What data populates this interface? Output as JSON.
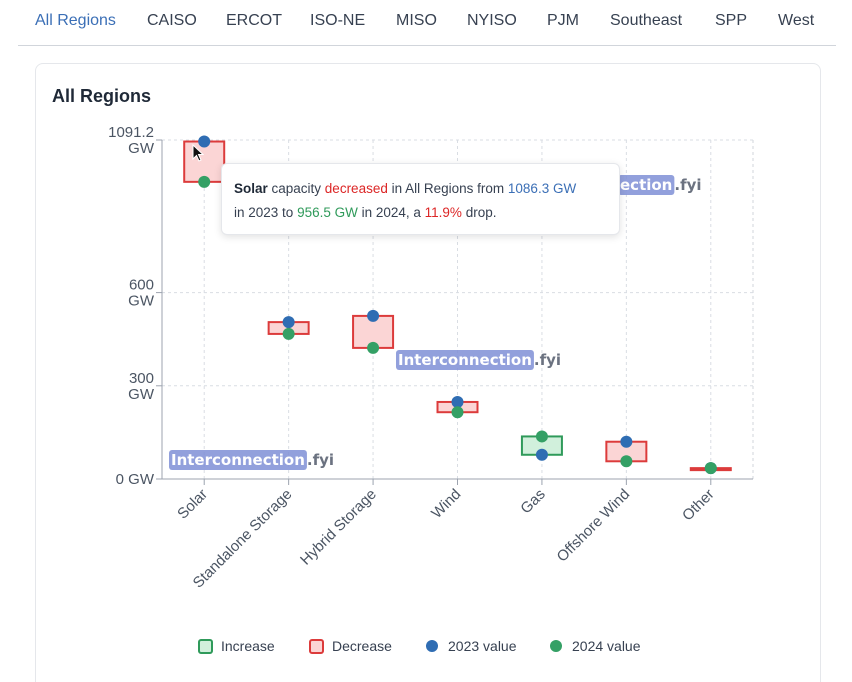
{
  "tabs": [
    {
      "label": "All Regions",
      "active": true
    },
    {
      "label": "CAISO",
      "active": false
    },
    {
      "label": "ERCOT",
      "active": false
    },
    {
      "label": "ISO-NE",
      "active": false
    },
    {
      "label": "MISO",
      "active": false
    },
    {
      "label": "NYISO",
      "active": false
    },
    {
      "label": "PJM",
      "active": false
    },
    {
      "label": "Southeast",
      "active": false
    },
    {
      "label": "SPP",
      "active": false
    },
    {
      "label": "West",
      "active": false
    }
  ],
  "card": {
    "title": "All Regions"
  },
  "watermark": {
    "part1": "Interconnection",
    "part2": ".fyi",
    "partial1": "ection"
  },
  "tooltip": {
    "fuel": "Solar",
    "t1": " capacity ",
    "direction": "decreased",
    "t2": " in All Regions from ",
    "from_value": "1086.3 GW",
    "t3": "in 2023 to ",
    "to_value": "956.5 GW",
    "t4": " in 2024, a ",
    "pct": "11.9%",
    "t5": " drop."
  },
  "legend": {
    "increase": "Increase",
    "decrease": "Decrease",
    "v2023": "2023 value",
    "v2024": "2024 value"
  },
  "colors": {
    "increase_fill": "#d1f0dc",
    "increase_stroke": "#2f9a5a",
    "decrease_fill": "#fbd5d5",
    "decrease_stroke": "#dc3b3b",
    "dot2023": "#2f6db3",
    "dot2024": "#34a065",
    "accent": "#3b6fb6"
  },
  "chart_data": {
    "type": "dumbbell-box",
    "title": "All Regions",
    "ylabel": "",
    "ylim": [
      0,
      1091.2
    ],
    "y_ticks": [
      {
        "value": 0,
        "label": [
          "0 GW"
        ]
      },
      {
        "value": 300,
        "label": [
          "300",
          "GW"
        ]
      },
      {
        "value": 600,
        "label": [
          "600",
          "GW"
        ]
      },
      {
        "value": 1091.2,
        "label": [
          "1091.2",
          "GW"
        ]
      }
    ],
    "categories": [
      "Solar",
      "Standalone Storage",
      "Hybrid Storage",
      "Wind",
      "Gas",
      "Offshore Wind",
      "Other"
    ],
    "series": [
      {
        "name": "2023 value",
        "values": [
          1086.3,
          505,
          525,
          248,
          78,
          120,
          35
        ]
      },
      {
        "name": "2024 value",
        "values": [
          956.5,
          467,
          422,
          215,
          137,
          57,
          35
        ]
      }
    ]
  }
}
